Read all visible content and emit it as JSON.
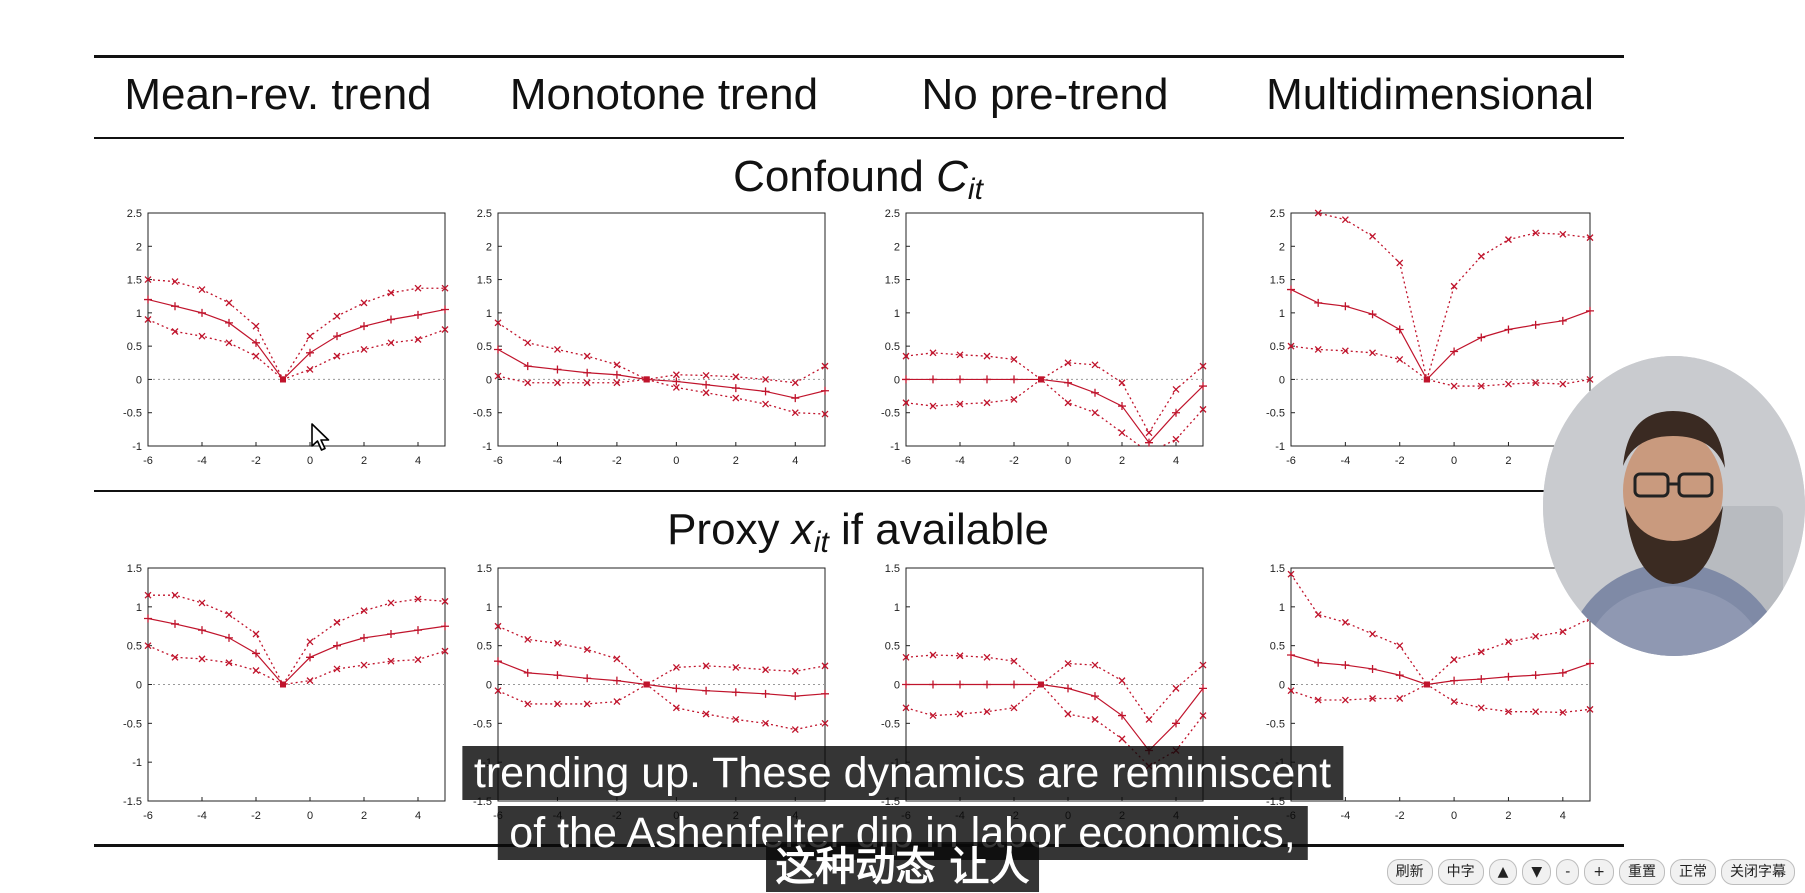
{
  "columns": [
    "Mean-rev. trend",
    "Monotone trend",
    "No pre-trend",
    "Multidimensional"
  ],
  "sections": {
    "confound": {
      "prefix": "Confound ",
      "var": "C",
      "sub": "it",
      "suffix": ""
    },
    "proxy": {
      "prefix": "Proxy ",
      "var": "x",
      "sub": "it",
      "suffix": " if available"
    }
  },
  "plot_axes": {
    "x_ticks": [
      "-6",
      "-4",
      "-2",
      "0",
      "2",
      "4"
    ],
    "top_y_ticks": [
      "2.5",
      "2",
      "1.5",
      "1",
      "0.5",
      "0",
      "-0.5",
      "-1"
    ],
    "bottom_y_ticks": [
      "1.5",
      "1",
      "0.5",
      "0",
      "-0.5",
      "-1",
      "-1.5"
    ]
  },
  "chart_data": [
    {
      "type": "line",
      "panel": "confound-mean-rev",
      "x": [
        -6,
        -5,
        -4,
        -3,
        -2,
        -1,
        0,
        1,
        2,
        3,
        4,
        5
      ],
      "ylim": [
        -1,
        2.5
      ],
      "xlim": [
        -6,
        5
      ],
      "series": [
        {
          "values": [
            1.5,
            1.47,
            1.35,
            1.15,
            0.8,
            0,
            0.65,
            0.95,
            1.15,
            1.3,
            1.37,
            1.37
          ]
        },
        {
          "values": [
            1.2,
            1.1,
            1.0,
            0.85,
            0.55,
            0,
            0.4,
            0.65,
            0.8,
            0.9,
            0.97,
            1.05
          ]
        },
        {
          "values": [
            0.9,
            0.72,
            0.65,
            0.55,
            0.35,
            0,
            0.15,
            0.35,
            0.45,
            0.55,
            0.6,
            0.75
          ]
        }
      ]
    },
    {
      "type": "line",
      "panel": "confound-monotone",
      "x": [
        -6,
        -5,
        -4,
        -3,
        -2,
        -1,
        0,
        1,
        2,
        3,
        4,
        5
      ],
      "ylim": [
        -1,
        2.5
      ],
      "xlim": [
        -6,
        5
      ],
      "series": [
        {
          "values": [
            0.85,
            0.55,
            0.45,
            0.35,
            0.22,
            0,
            0.07,
            0.06,
            0.04,
            0.0,
            -0.05,
            0.2
          ]
        },
        {
          "values": [
            0.45,
            0.2,
            0.15,
            0.1,
            0.07,
            0,
            -0.03,
            -0.08,
            -0.13,
            -0.18,
            -0.28,
            -0.17
          ]
        },
        {
          "values": [
            0.05,
            -0.05,
            -0.05,
            -0.05,
            -0.05,
            0,
            -0.12,
            -0.2,
            -0.28,
            -0.37,
            -0.5,
            -0.52
          ]
        }
      ]
    },
    {
      "type": "line",
      "panel": "confound-no-pretrend",
      "x": [
        -6,
        -5,
        -4,
        -3,
        -2,
        -1,
        0,
        1,
        2,
        3,
        4,
        5
      ],
      "ylim": [
        -1,
        2.5
      ],
      "xlim": [
        -6,
        5
      ],
      "series": [
        {
          "values": [
            0.35,
            0.4,
            0.37,
            0.35,
            0.3,
            0,
            0.25,
            0.22,
            -0.05,
            -0.8,
            -0.15,
            0.2
          ]
        },
        {
          "values": [
            0.0,
            0.0,
            0.0,
            0.0,
            0.0,
            0,
            -0.05,
            -0.2,
            -0.4,
            -0.95,
            -0.5,
            -0.1
          ]
        },
        {
          "values": [
            -0.35,
            -0.4,
            -0.37,
            -0.35,
            -0.3,
            0,
            -0.35,
            -0.5,
            -0.8,
            -1.1,
            -0.9,
            -0.45
          ]
        }
      ]
    },
    {
      "type": "line",
      "panel": "confound-multidim",
      "x": [
        -6,
        -5,
        -4,
        -3,
        -2,
        -1,
        0,
        1,
        2,
        3,
        4,
        5
      ],
      "ylim": [
        -1,
        2.5
      ],
      "xlim": [
        -6,
        5
      ],
      "series": [
        {
          "values": [
            2.6,
            2.5,
            2.4,
            2.15,
            1.75,
            0,
            1.4,
            1.85,
            2.1,
            2.2,
            2.18,
            2.13
          ]
        },
        {
          "values": [
            1.35,
            1.15,
            1.1,
            0.98,
            0.75,
            0,
            0.42,
            0.63,
            0.75,
            0.82,
            0.88,
            1.03
          ]
        },
        {
          "values": [
            0.5,
            0.45,
            0.43,
            0.4,
            0.3,
            0,
            -0.1,
            -0.1,
            -0.07,
            -0.05,
            -0.07,
            0.0
          ]
        }
      ]
    },
    {
      "type": "line",
      "panel": "proxy-mean-rev",
      "x": [
        -6,
        -5,
        -4,
        -3,
        -2,
        -1,
        0,
        1,
        2,
        3,
        4,
        5
      ],
      "ylim": [
        -1.5,
        1.5
      ],
      "xlim": [
        -6,
        5
      ],
      "series": [
        {
          "values": [
            1.15,
            1.15,
            1.05,
            0.9,
            0.65,
            0,
            0.55,
            0.8,
            0.95,
            1.05,
            1.1,
            1.07
          ]
        },
        {
          "values": [
            0.85,
            0.78,
            0.7,
            0.6,
            0.4,
            0,
            0.35,
            0.5,
            0.6,
            0.65,
            0.7,
            0.75
          ]
        },
        {
          "values": [
            0.5,
            0.35,
            0.33,
            0.28,
            0.18,
            0,
            0.05,
            0.2,
            0.25,
            0.3,
            0.32,
            0.43
          ]
        }
      ]
    },
    {
      "type": "line",
      "panel": "proxy-monotone",
      "x": [
        -6,
        -5,
        -4,
        -3,
        -2,
        -1,
        0,
        1,
        2,
        3,
        4,
        5
      ],
      "ylim": [
        -1.5,
        1.5
      ],
      "xlim": [
        -6,
        5
      ],
      "series": [
        {
          "values": [
            0.75,
            0.58,
            0.53,
            0.45,
            0.33,
            0,
            0.22,
            0.24,
            0.22,
            0.19,
            0.17,
            0.24
          ]
        },
        {
          "values": [
            0.3,
            0.15,
            0.12,
            0.08,
            0.05,
            0,
            -0.05,
            -0.08,
            -0.1,
            -0.12,
            -0.15,
            -0.12
          ]
        },
        {
          "values": [
            -0.08,
            -0.25,
            -0.25,
            -0.25,
            -0.22,
            0,
            -0.3,
            -0.38,
            -0.45,
            -0.5,
            -0.58,
            -0.5
          ]
        }
      ]
    },
    {
      "type": "line",
      "panel": "proxy-no-pretrend",
      "x": [
        -6,
        -5,
        -4,
        -3,
        -2,
        -1,
        0,
        1,
        2,
        3,
        4,
        5
      ],
      "ylim": [
        -1.5,
        1.5
      ],
      "xlim": [
        -6,
        5
      ],
      "series": [
        {
          "values": [
            0.35,
            0.38,
            0.37,
            0.35,
            0.3,
            0,
            0.27,
            0.25,
            0.05,
            -0.45,
            -0.05,
            0.25
          ]
        },
        {
          "values": [
            0.0,
            0.0,
            0.0,
            0.0,
            0.0,
            0,
            -0.05,
            -0.15,
            -0.4,
            -0.85,
            -0.5,
            -0.05
          ]
        },
        {
          "values": [
            -0.3,
            -0.4,
            -0.38,
            -0.35,
            -0.3,
            0,
            -0.38,
            -0.45,
            -0.7,
            -1.05,
            -0.85,
            -0.4
          ]
        }
      ]
    },
    {
      "type": "line",
      "panel": "proxy-multidim",
      "x": [
        -6,
        -5,
        -4,
        -3,
        -2,
        -1,
        0,
        1,
        2,
        3,
        4,
        5
      ],
      "ylim": [
        -1.5,
        1.5
      ],
      "xlim": [
        -6,
        5
      ],
      "series": [
        {
          "values": [
            1.42,
            0.9,
            0.8,
            0.65,
            0.5,
            0,
            0.32,
            0.42,
            0.55,
            0.62,
            0.68,
            0.85
          ]
        },
        {
          "values": [
            0.38,
            0.28,
            0.25,
            0.2,
            0.12,
            0,
            0.05,
            0.07,
            0.1,
            0.12,
            0.15,
            0.27
          ]
        },
        {
          "values": [
            -0.08,
            -0.2,
            -0.2,
            -0.18,
            -0.18,
            0,
            -0.22,
            -0.3,
            -0.35,
            -0.35,
            -0.36,
            -0.32
          ]
        }
      ]
    }
  ],
  "subtitles": {
    "line1": "trending up. These dynamics are reminiscent",
    "line2": "of the Ashenfelter dip in labor economics,",
    "zh": "这种动态 让人"
  },
  "controls": {
    "refresh": "刷新",
    "chinese": "中字",
    "up": "▲",
    "down": "▼",
    "minus": "-",
    "plus": "+",
    "reset": "重置",
    "normal": "正常",
    "close_subs": "关闭字幕"
  },
  "colors": {
    "series": "#c0142c",
    "axis": "#222222",
    "zero_line": "#999999"
  }
}
